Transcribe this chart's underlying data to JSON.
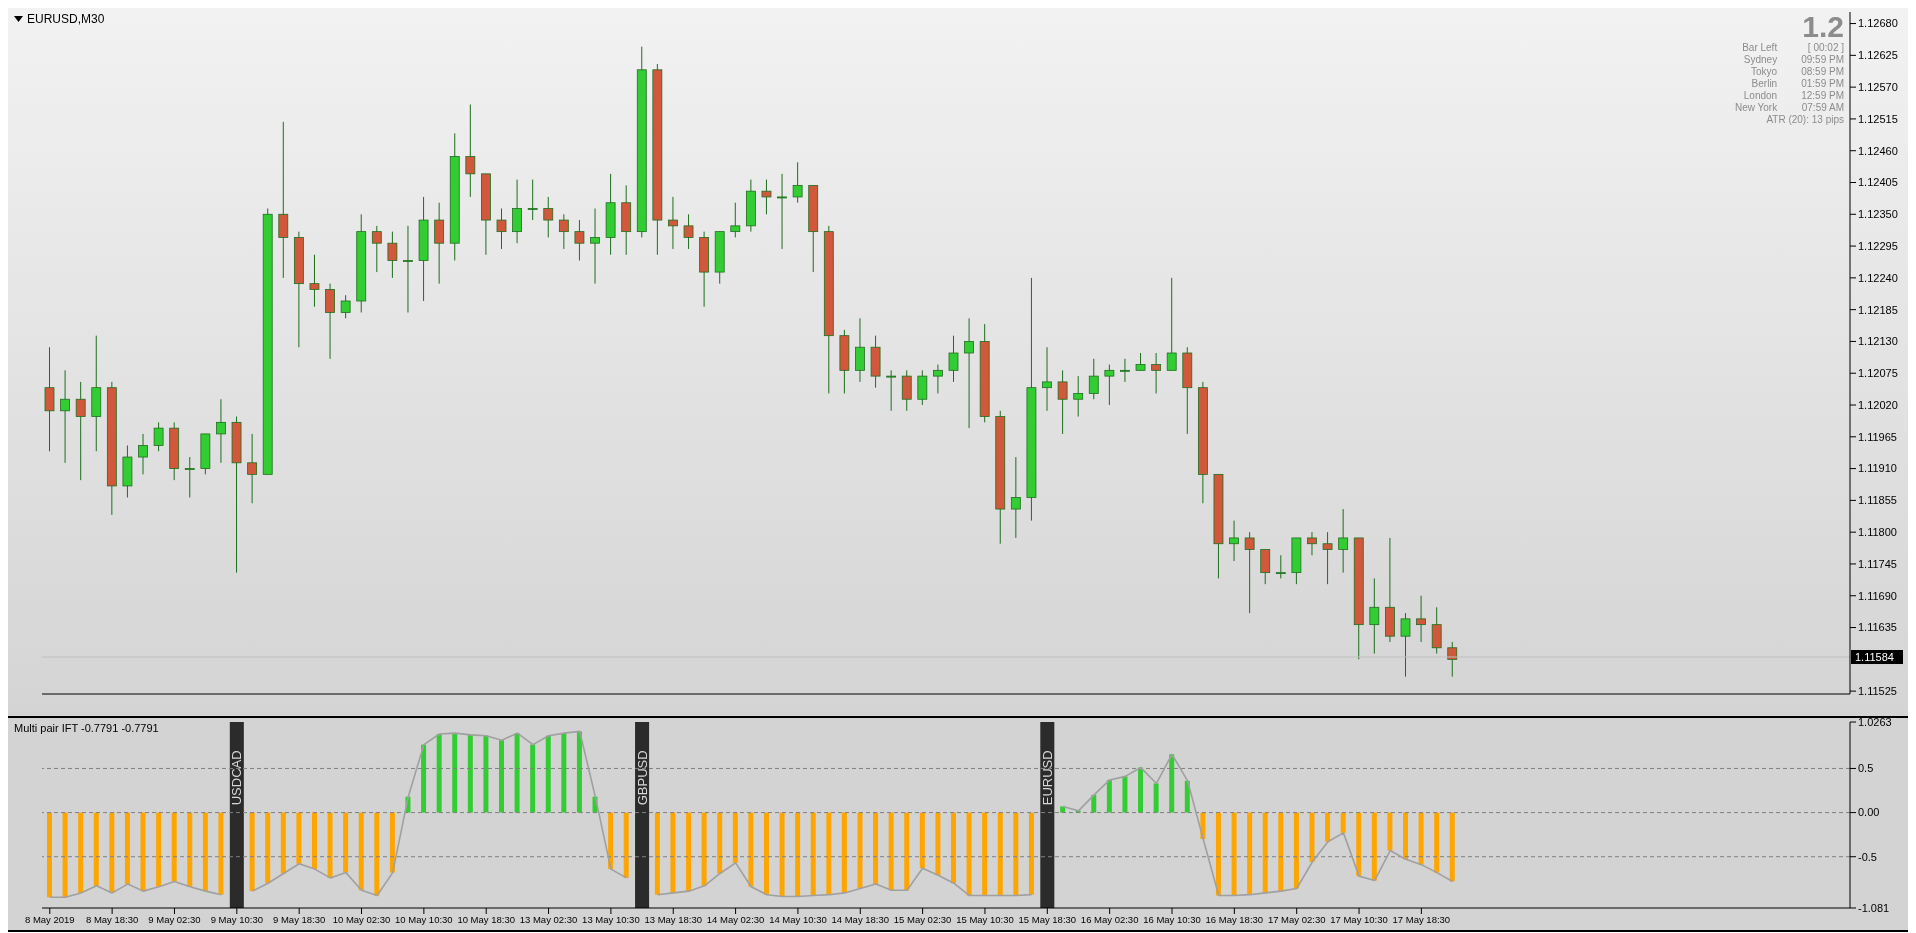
{
  "chart_data": [
    {
      "type": "candlestick",
      "title": "EURUSD,M30",
      "annotations": [
        "1.2",
        "Bar Left",
        "[ 00:02 ]",
        "Sydney",
        "09:59 PM",
        "Tokyo",
        "08:59 PM",
        "Berlin",
        "01:59 PM",
        "London",
        "12:59 PM",
        "New York",
        "07:59 AM",
        "ATR (20): 13 pips"
      ],
      "categories": [
        null,
        null,
        null,
        null,
        null,
        null,
        null,
        null,
        null,
        null,
        null,
        null,
        null,
        null,
        null,
        null,
        null,
        null,
        null,
        null,
        null,
        null,
        null,
        null,
        null,
        null,
        null,
        null,
        null,
        null,
        null,
        null,
        null,
        null,
        null,
        null,
        null,
        null,
        null,
        null,
        null,
        null,
        null,
        null,
        null,
        null,
        null,
        null,
        null,
        null,
        null,
        null,
        null,
        null,
        null,
        null,
        null,
        null,
        null,
        null,
        null,
        null,
        null,
        null,
        null,
        null,
        null,
        null,
        null,
        null,
        null,
        null,
        null,
        null,
        null,
        null,
        null,
        null,
        null,
        null,
        null,
        null,
        null,
        null,
        null,
        null,
        null,
        null,
        null,
        null,
        null,
        null,
        null,
        null,
        null,
        null,
        null,
        null,
        null,
        null,
        null,
        null,
        null,
        null,
        null,
        null,
        null,
        null,
        null,
        null,
        null,
        null,
        null,
        null,
        null,
        null
      ],
      "ohlc": [
        [
          1.1205,
          1.1212,
          1.1194,
          1.1201
        ],
        [
          1.1201,
          1.1208,
          1.1192,
          1.1203
        ],
        [
          1.1203,
          1.1206,
          1.1189,
          1.12
        ],
        [
          1.12,
          1.1214,
          1.1194,
          1.1205
        ],
        [
          1.1205,
          1.1206,
          1.1183,
          1.1188
        ],
        [
          1.1188,
          1.1195,
          1.1186,
          1.1193
        ],
        [
          1.1193,
          1.1197,
          1.119,
          1.1195
        ],
        [
          1.1195,
          1.1199,
          1.1194,
          1.1198
        ],
        [
          1.1198,
          1.1199,
          1.1189,
          1.1191
        ],
        [
          1.1191,
          1.1193,
          1.1186,
          1.1191
        ],
        [
          1.1191,
          1.1197,
          1.119,
          1.1197
        ],
        [
          1.1197,
          1.1203,
          1.1192,
          1.1199
        ],
        [
          1.1199,
          1.12,
          1.1173,
          1.1192
        ],
        [
          1.1192,
          1.1197,
          1.1185,
          1.119
        ],
        [
          1.119,
          1.1236,
          1.119,
          1.1235
        ],
        [
          1.1235,
          1.1251,
          1.1224,
          1.1231
        ],
        [
          1.1231,
          1.1232,
          1.1212,
          1.1223
        ],
        [
          1.1223,
          1.1228,
          1.1219,
          1.1222
        ],
        [
          1.1222,
          1.1223,
          1.121,
          1.1218
        ],
        [
          1.1218,
          1.1221,
          1.1217,
          1.122
        ],
        [
          1.122,
          1.1235,
          1.1218,
          1.1232
        ],
        [
          1.1232,
          1.1233,
          1.1225,
          1.123
        ],
        [
          1.123,
          1.1232,
          1.1224,
          1.1227
        ],
        [
          1.1227,
          1.1233,
          1.1218,
          1.1227
        ],
        [
          1.1227,
          1.1238,
          1.122,
          1.1234
        ],
        [
          1.1234,
          1.1237,
          1.1223,
          1.123
        ],
        [
          1.123,
          1.1249,
          1.1227,
          1.1245
        ],
        [
          1.1245,
          1.1254,
          1.1238,
          1.1242
        ],
        [
          1.1242,
          1.1242,
          1.1228,
          1.1234
        ],
        [
          1.1234,
          1.1236,
          1.1229,
          1.1232
        ],
        [
          1.1232,
          1.1241,
          1.123,
          1.1236
        ],
        [
          1.1236,
          1.1241,
          1.1234,
          1.1236
        ],
        [
          1.1236,
          1.1238,
          1.1231,
          1.1234
        ],
        [
          1.1234,
          1.1235,
          1.1229,
          1.1232
        ],
        [
          1.1232,
          1.1234,
          1.1227,
          1.123
        ],
        [
          1.123,
          1.1236,
          1.1223,
          1.1231
        ],
        [
          1.1231,
          1.1242,
          1.1228,
          1.1237
        ],
        [
          1.1237,
          1.124,
          1.1228,
          1.1232
        ],
        [
          1.1232,
          1.1264,
          1.1231,
          1.126
        ],
        [
          1.126,
          1.1261,
          1.1228,
          1.1234
        ],
        [
          1.1234,
          1.1238,
          1.1229,
          1.1233
        ],
        [
          1.1233,
          1.1235,
          1.1229,
          1.1231
        ],
        [
          1.1231,
          1.1232,
          1.1219,
          1.1225
        ],
        [
          1.1225,
          1.1232,
          1.1223,
          1.1232
        ],
        [
          1.1232,
          1.1237,
          1.1231,
          1.1233
        ],
        [
          1.1233,
          1.1241,
          1.1232,
          1.1239
        ],
        [
          1.1239,
          1.1241,
          1.1235,
          1.1238
        ],
        [
          1.1238,
          1.1242,
          1.1229,
          1.1238
        ],
        [
          1.1238,
          1.1244,
          1.1237,
          1.124
        ],
        [
          1.124,
          1.124,
          1.1225,
          1.1232
        ],
        [
          1.1232,
          1.1233,
          1.1204,
          1.1214
        ],
        [
          1.1214,
          1.1215,
          1.1204,
          1.1208
        ],
        [
          1.1208,
          1.1217,
          1.1206,
          1.1212
        ],
        [
          1.1212,
          1.1214,
          1.1205,
          1.1207
        ],
        [
          1.1207,
          1.1208,
          1.1201,
          1.1207
        ],
        [
          1.1207,
          1.1208,
          1.1201,
          1.1203
        ],
        [
          1.1203,
          1.1208,
          1.1202,
          1.1207
        ],
        [
          1.1207,
          1.1209,
          1.1204,
          1.1208
        ],
        [
          1.1208,
          1.1214,
          1.1206,
          1.1211
        ],
        [
          1.1211,
          1.1217,
          1.1198,
          1.1213
        ],
        [
          1.1213,
          1.1216,
          1.1199,
          1.12
        ],
        [
          1.12,
          1.1201,
          1.1178,
          1.1184
        ],
        [
          1.1184,
          1.1193,
          1.1179,
          1.1186
        ],
        [
          1.1186,
          1.1224,
          1.1182,
          1.1205
        ],
        [
          1.1205,
          1.1212,
          1.1201,
          1.1206
        ],
        [
          1.1206,
          1.1208,
          1.1197,
          1.1203
        ],
        [
          1.1203,
          1.1207,
          1.12,
          1.1204
        ],
        [
          1.1204,
          1.121,
          1.1203,
          1.1207
        ],
        [
          1.1207,
          1.1209,
          1.1202,
          1.1208
        ],
        [
          1.1208,
          1.121,
          1.1206,
          1.1208
        ],
        [
          1.1208,
          1.1211,
          1.1208,
          1.1209
        ],
        [
          1.1209,
          1.1211,
          1.1204,
          1.1208
        ],
        [
          1.1208,
          1.1224,
          1.1208,
          1.1211
        ],
        [
          1.1211,
          1.1212,
          1.1197,
          1.1205
        ],
        [
          1.1205,
          1.1206,
          1.1185,
          1.119
        ],
        [
          1.119,
          1.119,
          1.1172,
          1.1178
        ],
        [
          1.1178,
          1.1182,
          1.1175,
          1.1179
        ],
        [
          1.1179,
          1.118,
          1.1166,
          1.1177
        ],
        [
          1.1177,
          1.1177,
          1.1171,
          1.1173
        ],
        [
          1.1173,
          1.1176,
          1.1172,
          1.1173
        ],
        [
          1.1173,
          1.1179,
          1.1171,
          1.1179
        ],
        [
          1.1179,
          1.118,
          1.1176,
          1.1178
        ],
        [
          1.1178,
          1.118,
          1.1171,
          1.1177
        ],
        [
          1.1177,
          1.1184,
          1.1173,
          1.1179
        ],
        [
          1.1179,
          1.1179,
          1.1158,
          1.1164
        ],
        [
          1.1164,
          1.1172,
          1.1159,
          1.1167
        ],
        [
          1.1167,
          1.1179,
          1.1161,
          1.1162
        ],
        [
          1.1162,
          1.1166,
          1.1155,
          1.1165
        ],
        [
          1.1165,
          1.1169,
          1.1161,
          1.1164
        ],
        [
          1.1164,
          1.1167,
          1.1159,
          1.116
        ],
        [
          1.116,
          1.1161,
          1.1155,
          1.1158
        ],
        null,
        null,
        null,
        null,
        null,
        null,
        null,
        null,
        null,
        null,
        null,
        null,
        null,
        null,
        null,
        null,
        null,
        null,
        null,
        null,
        null,
        null,
        null,
        null,
        null
      ],
      "ylim": [
        1.1152,
        1.127
      ],
      "yticks": [
        1.11525,
        {
          "value": 1.11635,
          "label": "1.11635"
        },
        {
          "value": 1.1169,
          "label": "1.11690"
        },
        1.11745,
        {
          "value": 1.118,
          "label": "1.11800"
        },
        1.11855,
        {
          "value": 1.1191,
          "label": "1.11910"
        },
        1.11965,
        {
          "value": 1.1202,
          "label": "1.12020"
        },
        1.12075,
        {
          "value": 1.1213,
          "label": "1.12130"
        },
        1.12185,
        {
          "value": 1.1224,
          "label": "1.12240"
        },
        1.12295,
        {
          "value": 1.1235,
          "label": "1.12350"
        },
        1.12405,
        {
          "value": 1.1246,
          "label": "1.12460"
        },
        1.12515,
        {
          "value": 1.1257,
          "label": "1.12570"
        },
        1.12625,
        {
          "value": 1.1268,
          "label": "1.12680"
        }
      ],
      "ref_lines": [
        {
          "axis": "y",
          "value": 1.11584,
          "label": "1.11584",
          "color": "#c0c0c0"
        }
      ]
    },
    {
      "type": "bar",
      "title": "Multi pair IFT -0.7791 -0.7791",
      "annotations": [
        "USDCAD",
        "GBPUSD",
        "EURUSD"
      ],
      "categories": [
        "8 May 2019",
        null,
        null,
        null,
        "8 May 18:30",
        null,
        null,
        null,
        "9 May 02:30",
        null,
        null,
        null,
        "9 May 10:30",
        null,
        null,
        null,
        "9 May 18:30",
        null,
        null,
        null,
        "10 May 02:30",
        null,
        null,
        null,
        "10 May 10:30",
        null,
        null,
        null,
        "10 May 18:30",
        null,
        null,
        null,
        "13 May 02:30",
        null,
        null,
        null,
        "13 May 10:30",
        null,
        null,
        null,
        "13 May 18:30",
        null,
        null,
        null,
        "14 May 02:30",
        null,
        null,
        null,
        "14 May 10:30",
        null,
        null,
        null,
        "14 May 18:30",
        null,
        null,
        null,
        "15 May 02:30",
        null,
        null,
        null,
        "15 May 10:30",
        null,
        null,
        null,
        "15 May 18:30",
        null,
        null,
        null,
        "16 May 02:30",
        null,
        null,
        null,
        "16 May 10:30",
        null,
        null,
        null,
        "16 May 18:30",
        null,
        null,
        null,
        "17 May 02:30",
        null,
        null,
        null,
        "17 May 10:30",
        null,
        null,
        null,
        "17 May 18:30",
        null,
        null,
        null,
        null,
        null,
        null,
        null,
        null,
        null,
        null,
        null,
        null,
        null,
        null,
        null,
        null,
        null,
        null,
        null,
        null,
        null,
        null,
        null,
        null,
        null,
        null,
        null
      ],
      "series": [
        {
          "type": "bar",
          "values": [
            -0.96,
            -0.96,
            -0.91,
            -0.83,
            -0.91,
            -0.81,
            -0.89,
            -0.84,
            -0.78,
            -0.84,
            -0.89,
            -0.93,
            null,
            -0.89,
            -0.8,
            -0.69,
            -0.58,
            -0.64,
            -0.74,
            -0.68,
            -0.88,
            -0.94,
            -0.68,
            0.18,
            0.77,
            0.89,
            0.9,
            0.88,
            0.87,
            0.82,
            0.9,
            0.77,
            0.87,
            0.9,
            0.92,
            0.18,
            -0.64,
            -0.74,
            null,
            -0.93,
            -0.91,
            -0.89,
            -0.83,
            -0.69,
            -0.57,
            -0.84,
            -0.93,
            -0.95,
            -0.95,
            -0.94,
            -0.93,
            -0.91,
            -0.86,
            -0.81,
            -0.88,
            -0.88,
            -0.63,
            -0.71,
            -0.8,
            -0.94,
            -0.94,
            -0.94,
            -0.94,
            -0.93,
            null,
            0.07,
            0.02,
            0.2,
            0.37,
            0.41,
            0.51,
            0.33,
            0.66,
            0.36,
            -0.3,
            -0.94,
            -0.94,
            -0.93,
            -0.91,
            -0.89,
            -0.86,
            -0.56,
            -0.33,
            -0.23,
            -0.72,
            -0.77,
            -0.43,
            -0.53,
            -0.59,
            -0.68,
            -0.78,
            null,
            null,
            null,
            null,
            null,
            null,
            null,
            null,
            null,
            null,
            null,
            null,
            null,
            null,
            null,
            null,
            null,
            null,
            null,
            null,
            null,
            null,
            null,
            null,
            null
          ],
          "colors": [
            "#ffa500",
            "#ffa500",
            "#ffa500",
            "#ffa500",
            "#ffa500",
            "#ffa500",
            "#ffa500",
            "#ffa500",
            "#ffa500",
            "#ffa500",
            "#ffa500",
            "#ffa500",
            null,
            "#ffa500",
            "#ffa500",
            "#ffa500",
            "#ffa500",
            "#ffa500",
            "#ffa500",
            "#ffa500",
            "#ffa500",
            "#ffa500",
            "#ffa500",
            "#32cd32",
            "#32cd32",
            "#32cd32",
            "#32cd32",
            "#32cd32",
            "#32cd32",
            "#32cd32",
            "#32cd32",
            "#32cd32",
            "#32cd32",
            "#32cd32",
            "#32cd32",
            "#32cd32",
            "#ffa500",
            "#ffa500",
            null,
            "#ffa500",
            "#ffa500",
            "#ffa500",
            "#ffa500",
            "#ffa500",
            "#ffa500",
            "#ffa500",
            "#ffa500",
            "#ffa500",
            "#ffa500",
            "#ffa500",
            "#ffa500",
            "#ffa500",
            "#ffa500",
            "#ffa500",
            "#ffa500",
            "#ffa500",
            "#ffa500",
            "#ffa500",
            "#ffa500",
            "#ffa500",
            "#ffa500",
            "#ffa500",
            "#ffa500",
            "#ffa500",
            null,
            "#32cd32",
            "#32cd32",
            "#32cd32",
            "#32cd32",
            "#32cd32",
            "#32cd32",
            "#32cd32",
            "#32cd32",
            "#32cd32",
            "#ffa500",
            "#ffa500",
            "#ffa500",
            "#ffa500",
            "#ffa500",
            "#ffa500",
            "#ffa500",
            "#ffa500",
            "#ffa500",
            "#ffa500",
            "#ffa500",
            "#ffa500",
            "#ffa500",
            "#ffa500",
            "#ffa500",
            "#ffa500",
            "#ffa500",
            null,
            null,
            null,
            null,
            null,
            null,
            null,
            null,
            null,
            null,
            null,
            null,
            null,
            null,
            null,
            null,
            null,
            null,
            null,
            null,
            null,
            null,
            null,
            null,
            null
          ]
        },
        {
          "type": "line",
          "color": "#a0a0a0",
          "values": [
            -0.96,
            -0.96,
            -0.91,
            -0.83,
            -0.91,
            -0.81,
            -0.89,
            -0.84,
            -0.78,
            -0.84,
            -0.89,
            -0.93,
            null,
            -0.89,
            -0.8,
            -0.69,
            -0.58,
            -0.64,
            -0.74,
            -0.68,
            -0.88,
            -0.94,
            -0.68,
            0.18,
            0.77,
            0.89,
            0.9,
            0.88,
            0.87,
            0.82,
            0.9,
            0.77,
            0.87,
            0.9,
            0.92,
            0.18,
            -0.64,
            -0.74,
            null,
            -0.93,
            -0.91,
            -0.89,
            -0.83,
            -0.69,
            -0.57,
            -0.84,
            -0.93,
            -0.95,
            -0.95,
            -0.94,
            -0.93,
            -0.91,
            -0.86,
            -0.81,
            -0.88,
            -0.88,
            -0.63,
            -0.71,
            -0.8,
            -0.94,
            -0.94,
            -0.94,
            -0.94,
            -0.93,
            null,
            0.07,
            0.02,
            0.2,
            0.37,
            0.41,
            0.51,
            0.33,
            0.66,
            0.36,
            -0.3,
            -0.94,
            -0.94,
            -0.93,
            -0.91,
            -0.89,
            -0.86,
            -0.56,
            -0.33,
            -0.23,
            -0.72,
            -0.77,
            -0.43,
            -0.53,
            -0.59,
            -0.68,
            -0.78,
            null,
            null,
            null,
            null,
            null,
            null,
            null,
            null,
            null,
            null,
            null,
            null,
            null,
            null,
            null,
            null,
            null,
            null,
            null,
            null,
            null,
            null,
            null,
            null,
            null
          ]
        }
      ],
      "ylim": [
        -1.081,
        1.0263
      ],
      "yticks": [
        1.0263,
        0.5,
        {
          "value": 0,
          "label": "0.00"
        },
        -0.5,
        -1.081
      ],
      "ref_lines": [
        {
          "axis": "y",
          "value": 0.5,
          "color": "#808080",
          "line_style": "dashed"
        },
        {
          "axis": "y",
          "value": 0,
          "color": "#808080",
          "line_style": "dashed"
        },
        {
          "axis": "y",
          "value": -0.5,
          "color": "#808080",
          "line_style": "dashed"
        }
      ]
    }
  ]
}
